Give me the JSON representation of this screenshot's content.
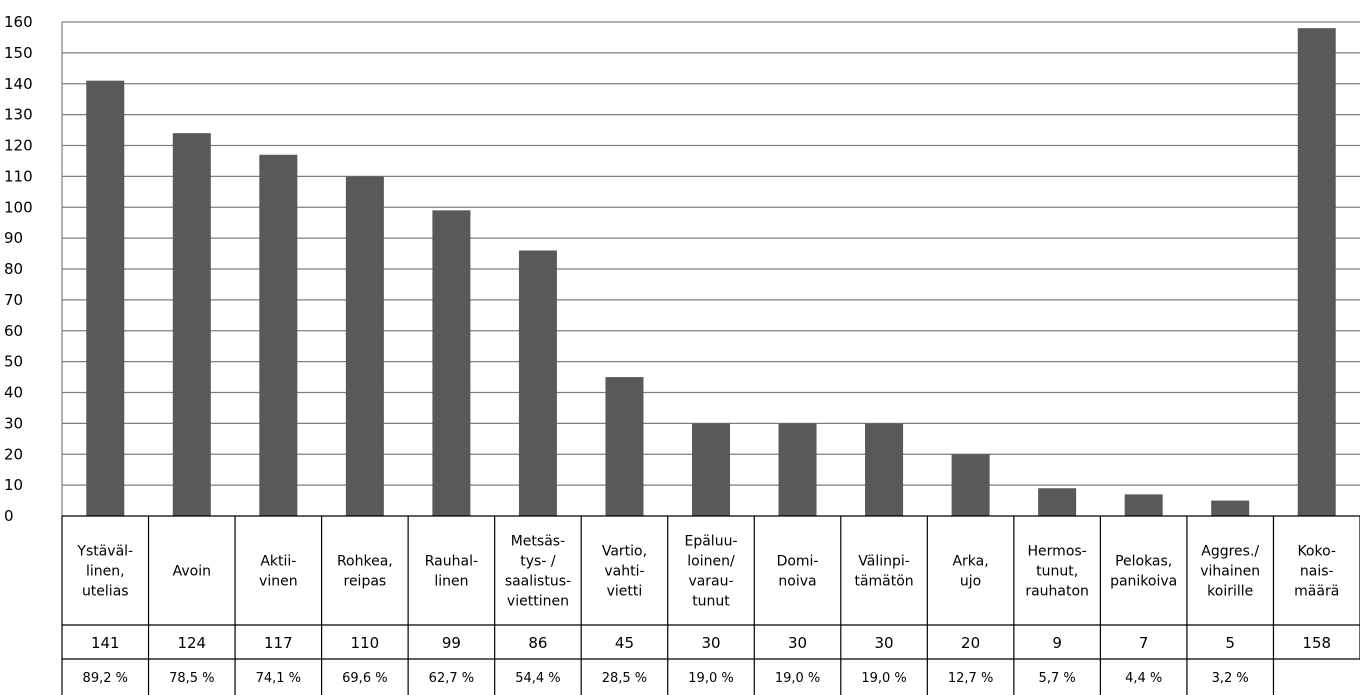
{
  "chart_data": {
    "type": "bar",
    "title": "",
    "xlabel": "",
    "ylabel": "",
    "ylim": [
      0,
      160
    ],
    "yticks": [
      "0",
      "10",
      "20",
      "30",
      "40",
      "50",
      "60",
      "70",
      "80",
      "90",
      "100",
      "110",
      "120",
      "130",
      "140",
      "150",
      "160"
    ],
    "grid": true,
    "legend": "none",
    "categories": [
      [
        "Ystäväl-",
        "linen,",
        "utelias"
      ],
      [
        "Avoin"
      ],
      [
        "Aktii-",
        "vinen"
      ],
      [
        "Rohkea,",
        "reipas"
      ],
      [
        "Rauhal-",
        "linen"
      ],
      [
        "Metsäs-",
        "tys- /",
        "saalistus-",
        "viettinen"
      ],
      [
        "Vartio,",
        "vahti-",
        "vietti"
      ],
      [
        "Epäluu-",
        "loinen/",
        "varau-",
        "tunut"
      ],
      [
        "Domi-",
        "noiva"
      ],
      [
        "Välinpi-",
        "tämätön"
      ],
      [
        "Arka,",
        "ujo"
      ],
      [
        "Hermos-",
        "tunut,",
        "rauhaton"
      ],
      [
        "Pelokas,",
        "panikoiva"
      ],
      [
        "Aggres./",
        "vihainen",
        "koirille"
      ],
      [
        "Koko-",
        "nais-",
        "määrä"
      ]
    ],
    "values": [
      141,
      124,
      117,
      110,
      99,
      86,
      45,
      30,
      30,
      30,
      20,
      9,
      7,
      5,
      158
    ],
    "value_labels": [
      "141",
      "124",
      "117",
      "110",
      "99",
      "86",
      "45",
      "30",
      "30",
      "30",
      "20",
      "9",
      "7",
      "5",
      "158"
    ],
    "percent_labels": [
      "89,2 %",
      "78,5 %",
      "74,1 %",
      "69,6 %",
      "62,7 %",
      "54,4 %",
      "28,5 %",
      "19,0 %",
      "19,0 %",
      "19,0 %",
      "12,7 %",
      "5,7 %",
      "4,4 %",
      "3,2 %",
      ""
    ],
    "bar_color": "#595959",
    "grid_color": "#7f7f7f"
  }
}
